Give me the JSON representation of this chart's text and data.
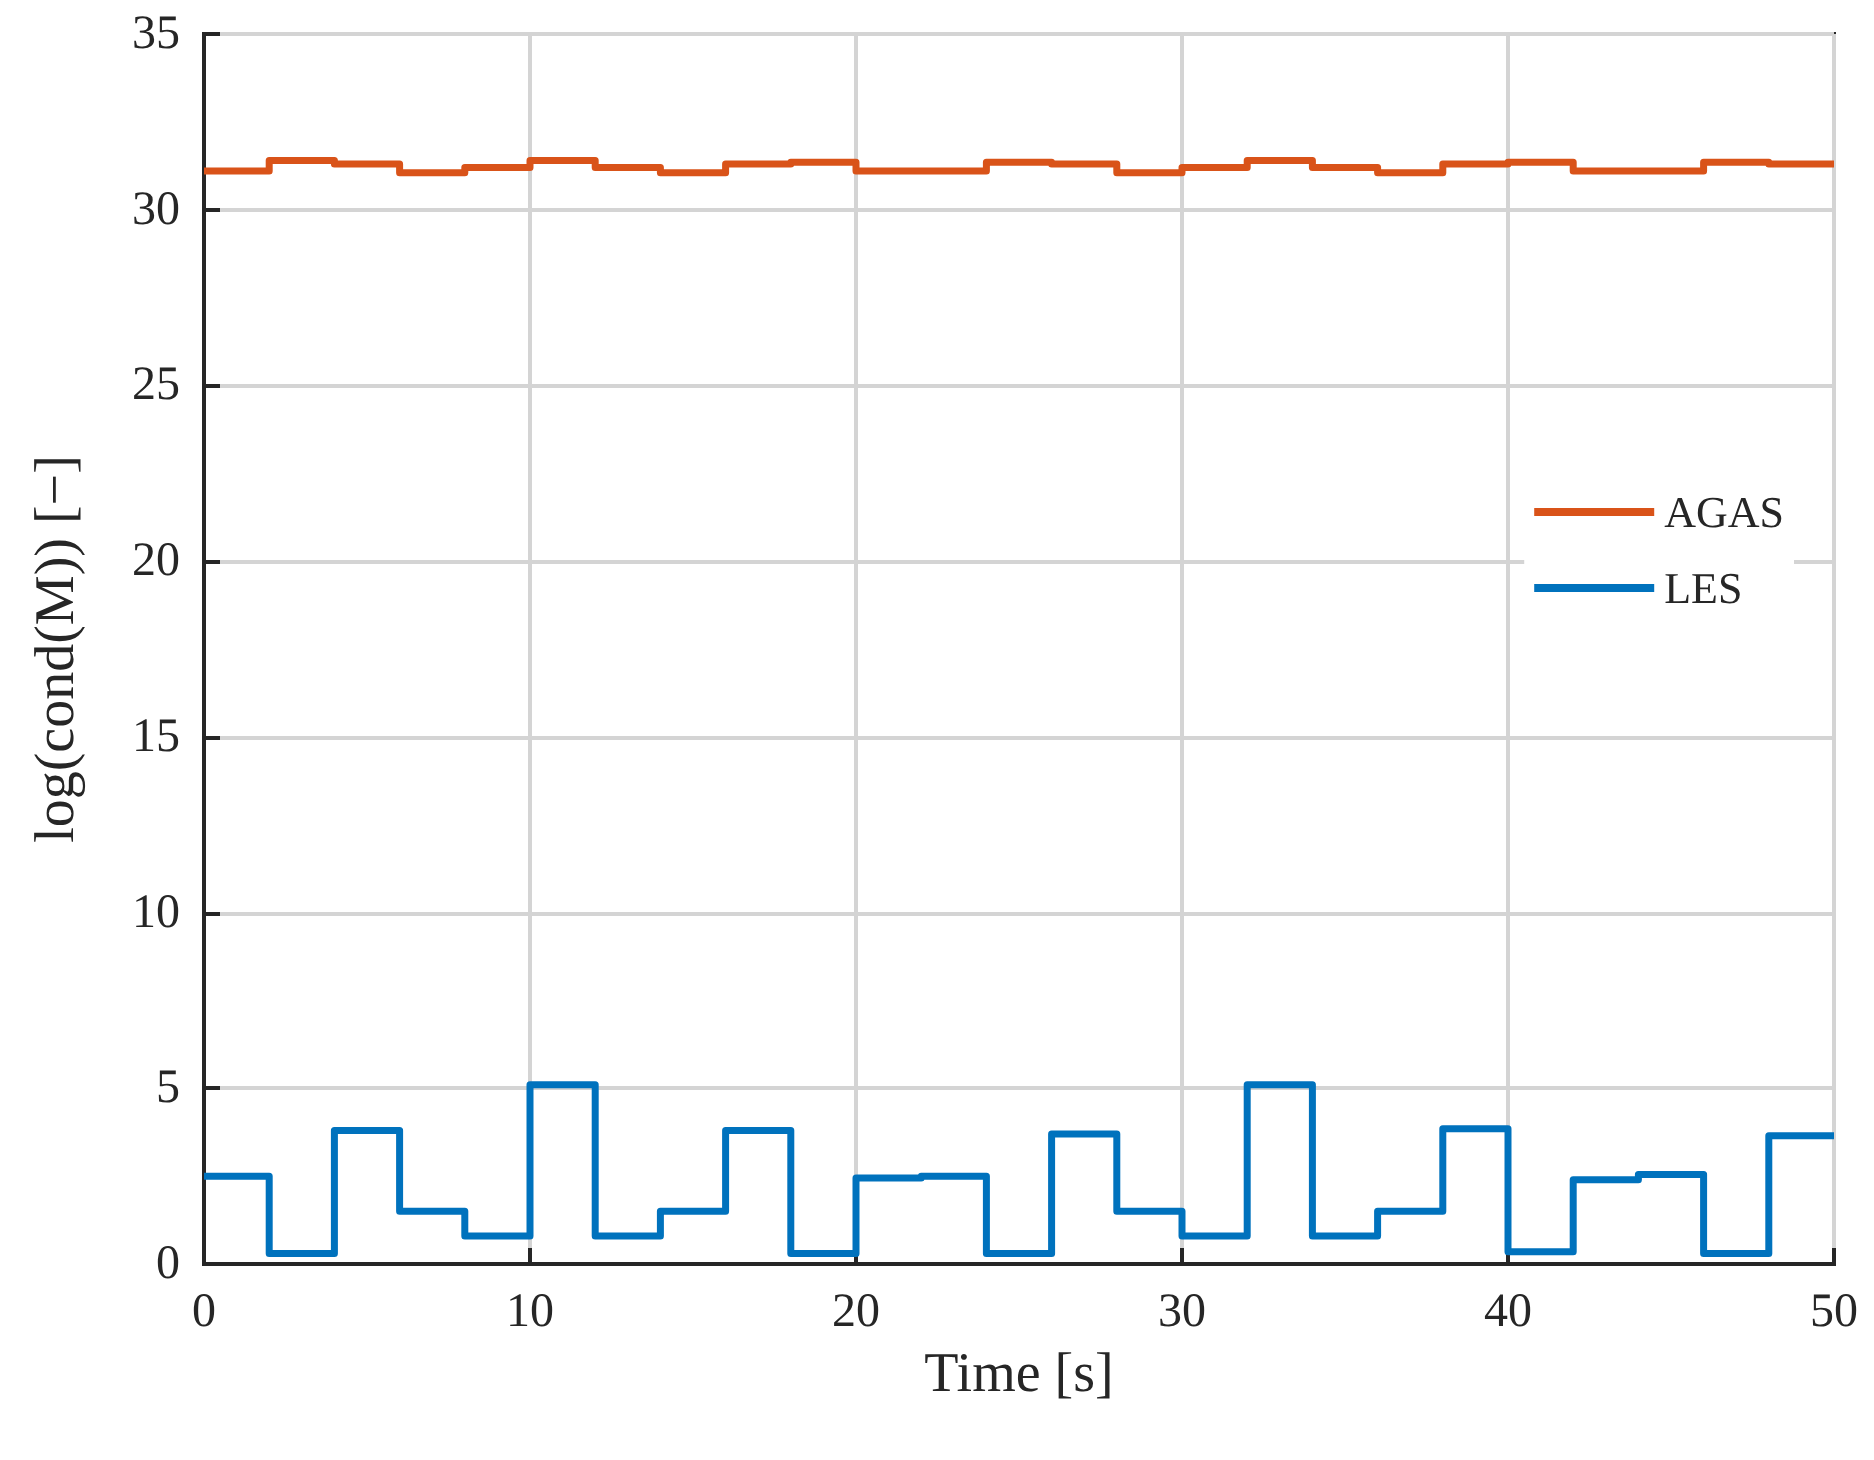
{
  "chart_data": {
    "type": "step",
    "xlabel": "Time [s]",
    "ylabel": "log(cond(M)) [−]",
    "x": [
      0,
      2,
      4,
      6,
      8,
      10,
      12,
      14,
      16,
      18,
      20,
      22,
      24,
      26,
      28,
      30,
      32,
      34,
      36,
      38,
      40,
      42,
      44,
      46,
      48,
      50
    ],
    "series": [
      {
        "name": "AGAS",
        "color": "#d95319",
        "values": [
          31.1,
          31.4,
          31.3,
          31.05,
          31.2,
          31.4,
          31.2,
          31.05,
          31.3,
          31.35,
          31.1,
          31.1,
          31.35,
          31.3,
          31.05,
          31.2,
          31.4,
          31.2,
          31.05,
          31.3,
          31.35,
          31.1,
          31.1,
          31.35,
          31.3,
          31.3
        ]
      },
      {
        "name": "LES",
        "color": "#0072bd",
        "values": [
          2.5,
          0.3,
          3.8,
          1.5,
          0.8,
          5.1,
          0.8,
          1.5,
          3.8,
          0.3,
          2.45,
          2.5,
          0.3,
          3.7,
          1.5,
          0.8,
          5.1,
          0.8,
          1.5,
          3.85,
          0.35,
          2.4,
          2.55,
          0.3,
          3.65,
          3.65
        ]
      }
    ],
    "xlim": [
      0,
      50
    ],
    "xticks": [
      0,
      10,
      20,
      30,
      40,
      50
    ],
    "ylim": [
      0,
      35
    ],
    "yticks": [
      0,
      5,
      10,
      15,
      20,
      25,
      30,
      35
    ],
    "grid": true,
    "legend": "right",
    "marker": "none",
    "line_style": "solid"
  }
}
